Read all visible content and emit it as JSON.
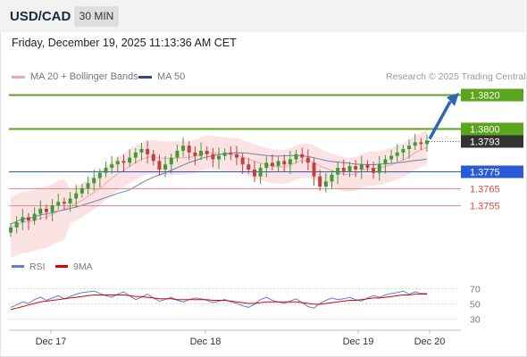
{
  "header": {
    "symbol": "USD/CAD",
    "timeframe": "30 MIN",
    "datetime": "Friday, December 19, 2025 11:13:36 AM CET"
  },
  "legend": {
    "ma20": "MA 20 + Bollinger Bands",
    "ma50": "MA 50",
    "credit": "Research © 2025 Trading Central"
  },
  "colors": {
    "resistance": "#5aa51c",
    "pivot": "#2a5bd7",
    "support": "#f08a8a",
    "current": "#333333",
    "bollinger_fill": "#fbd9d9",
    "ma20": "#f4a7a7",
    "ma50": "#6a82b5",
    "candle_up": "#3d9b35",
    "candle_down": "#c44040",
    "rsi": "#5b7fd3",
    "rsi_ma": "#e00000",
    "arrow": "#2f65b8"
  },
  "levels": [
    {
      "value": "1.3820",
      "kind": "resistance",
      "price": 1.382
    },
    {
      "value": "1.3800",
      "kind": "resistance",
      "price": 1.38
    },
    {
      "value": "1.3793",
      "kind": "current",
      "price": 1.3793
    },
    {
      "value": "1.3775",
      "kind": "pivot",
      "price": 1.3775
    },
    {
      "value": "1.3765",
      "kind": "support",
      "price": 1.3765
    },
    {
      "value": "1.3755",
      "kind": "support",
      "price": 1.3755
    }
  ],
  "rsi_panel": {
    "rsi_label": "RSI",
    "ma_label": "9MA",
    "ticks": [
      "70",
      "50",
      "30"
    ]
  },
  "x_axis": {
    "labels": [
      "Dec 17",
      "Dec 18",
      "Dec 19",
      "Dec 20"
    ]
  },
  "chart_data": {
    "type": "candlestick",
    "series_close": [
      1.3742,
      1.3745,
      1.3748,
      1.3746,
      1.375,
      1.3753,
      1.3751,
      1.3755,
      1.3757,
      1.3756,
      1.3759,
      1.3762,
      1.3765,
      1.3768,
      1.3771,
      1.3774,
      1.3777,
      1.3779,
      1.3781,
      1.378,
      1.3783,
      1.3786,
      1.3788,
      1.3785,
      1.3781,
      1.3776,
      1.3779,
      1.3783,
      1.3787,
      1.379,
      1.3786,
      1.3784,
      1.3787,
      1.3785,
      1.3782,
      1.3784,
      1.3786,
      1.3785,
      1.3783,
      1.3779,
      1.3776,
      1.3772,
      1.3777,
      1.378,
      1.3778,
      1.3781,
      1.3779,
      1.3782,
      1.3785,
      1.3783,
      1.378,
      1.3772,
      1.3766,
      1.3769,
      1.3773,
      1.3777,
      1.3775,
      1.3778,
      1.3776,
      1.3779,
      1.3777,
      1.3774,
      1.3779,
      1.3782,
      1.3784,
      1.3786,
      1.3788,
      1.379,
      1.3792,
      1.3791,
      1.3793
    ],
    "y_range": [
      1.3735,
      1.383
    ],
    "rsi_values": [
      45,
      48,
      52,
      50,
      55,
      58,
      54,
      57,
      60,
      56,
      59,
      62,
      64,
      65,
      66,
      63,
      60,
      58,
      62,
      65,
      60,
      55,
      58,
      62,
      57,
      53,
      55,
      58,
      54,
      52,
      55,
      57,
      56,
      54,
      51,
      53,
      55,
      52,
      50,
      47,
      45,
      49,
      55,
      58,
      54,
      52,
      50,
      53,
      56,
      51,
      46,
      44,
      50,
      54,
      57,
      55,
      56,
      58,
      55,
      53,
      57,
      60,
      58,
      61,
      63,
      64,
      66,
      62,
      65,
      63,
      63
    ],
    "rsi_ma_values": [
      42,
      44,
      46,
      48,
      50,
      52,
      53,
      54,
      55,
      56,
      57,
      58,
      59,
      60,
      61,
      61,
      61,
      61,
      61,
      61,
      60,
      59,
      59,
      58,
      57,
      56,
      56,
      56,
      55,
      55,
      55,
      55,
      55,
      55,
      54,
      54,
      54,
      53,
      52,
      51,
      50,
      50,
      51,
      52,
      52,
      52,
      52,
      52,
      52,
      51,
      50,
      49,
      49,
      50,
      51,
      52,
      53,
      54,
      54,
      55,
      56,
      57,
      57,
      58,
      59,
      60,
      61,
      61,
      62,
      62,
      62
    ],
    "rsi_range": [
      20,
      80
    ]
  }
}
